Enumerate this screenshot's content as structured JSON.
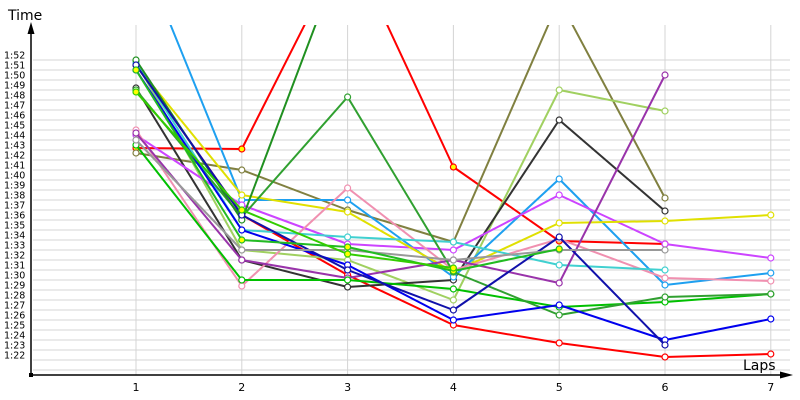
{
  "chart_data": {
    "type": "line",
    "title": "",
    "xlabel": "Laps",
    "ylabel": "Time",
    "x": [
      1,
      2,
      3,
      4,
      5,
      6,
      7
    ],
    "x_tick_labels": [
      "1",
      "2",
      "3",
      "4",
      "5",
      "6",
      "7"
    ],
    "y_tick_labels": [
      "1:22",
      "1:23",
      "1:24",
      "1:25",
      "1:26",
      "1:27",
      "1:28",
      "1:29",
      "1:30",
      "1:31",
      "1:32",
      "1:33",
      "1:34",
      "1:35",
      "1:36",
      "1:37",
      "1:38",
      "1:39",
      "1:40",
      "1:41",
      "1:42",
      "1:43",
      "1:44",
      "1:45",
      "1:46",
      "1:47",
      "1:48",
      "1:49",
      "1:50",
      "1:51",
      "1:52"
    ],
    "ylim_seconds": [
      82,
      112
    ],
    "grid": {
      "horizontal": true,
      "vertical": true
    },
    "legend": "none",
    "value_unit": "seconds (e.g. 112 = 1:52)",
    "series": [
      {
        "name": "red-1",
        "color": "#ff0000",
        "marker_fill": "#ffff00",
        "values": [
          103.2,
          103.1,
          124,
          101.3,
          93.9,
          93.6
        ]
      },
      {
        "name": "red-2",
        "color": "#ff0000",
        "marker_fill": "#ffffff",
        "values": [
          111.5,
          96.5,
          90.5,
          85.5,
          83.7,
          82.3,
          82.6
        ]
      },
      {
        "name": "olive",
        "color": "#808040",
        "marker_fill": "#ffffff",
        "values": [
          102.7,
          101,
          97,
          93.8,
          118,
          98.2
        ]
      },
      {
        "name": "yellow-green",
        "color": "#a0d060",
        "marker_fill": "#ffffff",
        "values": [
          111.8,
          93,
          92,
          88,
          109,
          106.9
        ]
      },
      {
        "name": "dark-gray",
        "color": "#333333",
        "marker_fill": "#ffffff",
        "values": [
          109.2,
          92,
          89.3,
          90,
          106,
          96.9
        ]
      },
      {
        "name": "sky-blue",
        "color": "#1ea0f0",
        "marker_fill": "#ffffff",
        "values": [
          124,
          98,
          98,
          90.3,
          100.1,
          89.5,
          90.7
        ]
      },
      {
        "name": "violet",
        "color": "#cc44ff",
        "marker_fill": "#ffffff",
        "values": [
          104.5,
          97.5,
          93.6,
          93,
          98.5,
          93.6,
          92.2
        ]
      },
      {
        "name": "yellow",
        "color": "#e0e000",
        "marker_fill": "#ffffff",
        "values": [
          111.5,
          98.5,
          96.8,
          90.8,
          95.7,
          95.9,
          96.5
        ]
      },
      {
        "name": "pink",
        "color": "#f090b0",
        "marker_fill": "#ffffff",
        "values": [
          105,
          89.4,
          99.2,
          91,
          94.1,
          90.2,
          89.9
        ]
      },
      {
        "name": "turquoise",
        "color": "#40d0d0",
        "marker_fill": "#ffffff",
        "values": [
          111.7,
          95,
          94.3,
          93.8,
          91.5,
          91
        ]
      },
      {
        "name": "purple",
        "color": "#9933aa",
        "marker_fill": "#ffffff",
        "values": [
          104.7,
          92,
          90.2,
          92,
          89.7,
          110.5
        ]
      },
      {
        "name": "green",
        "color": "#00c000",
        "marker_fill": "#ffffff",
        "values": [
          103.5,
          90,
          90,
          89.1,
          87.3,
          87.8,
          88.6
        ]
      },
      {
        "name": "forest-green",
        "color": "#30a030",
        "marker_fill": "#ffffff",
        "values": [
          109,
          96.3,
          108.3,
          90.8,
          86.5,
          88.3,
          88.6
        ]
      },
      {
        "name": "dark-green",
        "color": "#209020",
        "marker_fill": "#ffffff",
        "values": [
          112,
          96,
          124
        ]
      },
      {
        "name": "royal-blue",
        "color": "#0000ee",
        "marker_fill": "#ffffff",
        "values": [
          111,
          95,
          91.5,
          86,
          87.5,
          84,
          86.1
        ]
      },
      {
        "name": "navy-blue",
        "color": "#1010aa",
        "marker_fill": "#ffffff",
        "values": [
          111.5,
          96.5,
          91,
          87,
          94.3,
          83.5
        ]
      },
      {
        "name": "gray",
        "color": "#999999",
        "marker_fill": "#ffffff",
        "values": [
          104,
          93,
          93,
          92,
          93,
          93
        ]
      },
      {
        "name": "mid-green",
        "color": "#22bb22",
        "marker_fill": "#ffff00",
        "values": [
          111,
          94,
          93.3,
          90.9,
          93.1
        ]
      },
      {
        "name": "lime",
        "color": "#33cc00",
        "marker_fill": "#ffff00",
        "values": [
          108.8,
          97,
          92.6,
          91.2
        ]
      }
    ]
  },
  "axes": {
    "y_title": "Time",
    "x_title": "Laps"
  }
}
